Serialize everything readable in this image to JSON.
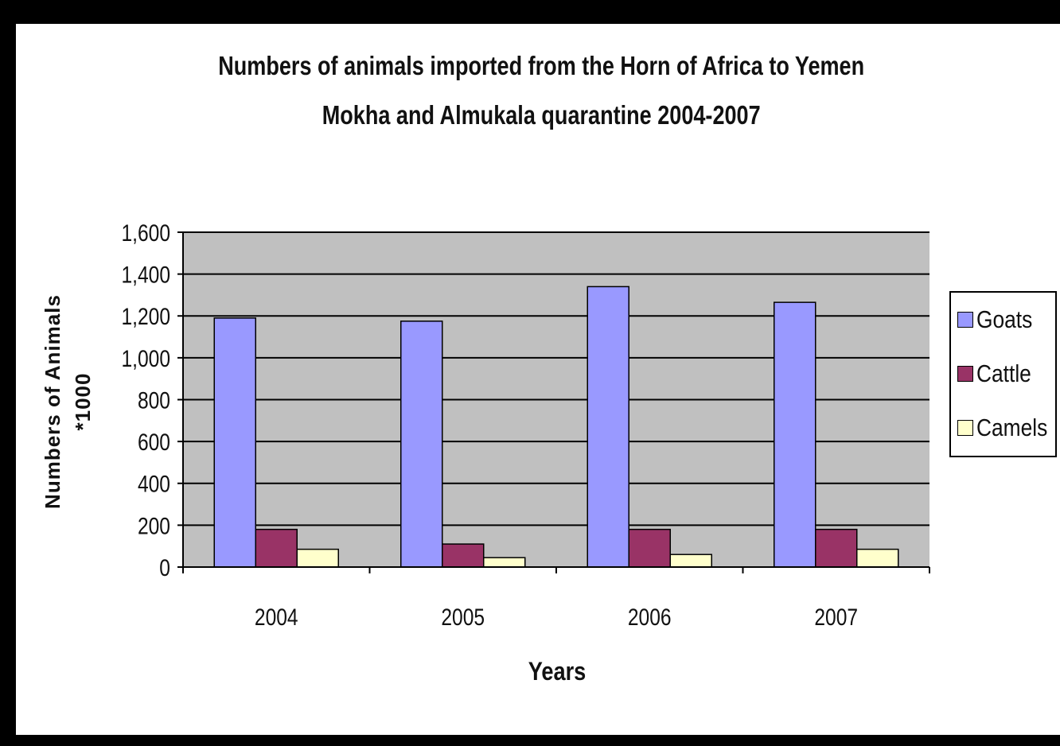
{
  "chart_data": {
    "type": "bar",
    "title": "Numbers of animals imported from the Horn of Africa to  Yemen Mokha and Almukala quarantine 2004-2007",
    "title_lines": [
      "Numbers of animals imported from the Horn of Africa to  Yemen",
      "Mokha and Almukala quarantine 2004-2007"
    ],
    "xlabel": "Years",
    "ylabel_lines": [
      "Numbers of Animals",
      "*1000"
    ],
    "categories": [
      "2004",
      "2005",
      "2006",
      "2007"
    ],
    "series": [
      {
        "name": "Goats",
        "values": [
          1190,
          1175,
          1340,
          1265
        ],
        "color": "#9999ff"
      },
      {
        "name": "Cattle",
        "values": [
          180,
          110,
          180,
          180
        ],
        "color": "#993366"
      },
      {
        "name": "Camels",
        "values": [
          85,
          45,
          60,
          85
        ],
        "color": "#ffffcc"
      }
    ],
    "ylim": [
      0,
      1600
    ],
    "yticks": [
      0,
      200,
      400,
      600,
      800,
      1000,
      1200,
      1400,
      1600
    ],
    "ytick_labels": [
      "0",
      "200",
      "400",
      "600",
      "800",
      "1,000",
      "1,200",
      "1,400",
      "1,600"
    ],
    "grid": true,
    "legend_position": "right",
    "plot_background": "#c0c0c0"
  }
}
